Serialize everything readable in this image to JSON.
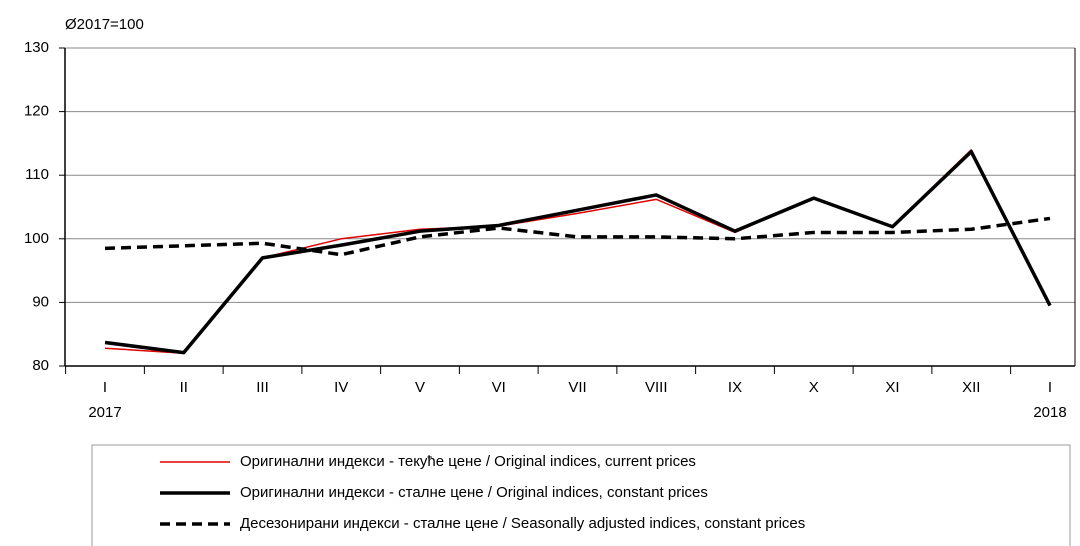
{
  "chart_data": {
    "type": "line",
    "unit_label": "Ø2017=100",
    "categories": [
      "I",
      "II",
      "III",
      "IV",
      "V",
      "VI",
      "VII",
      "VIII",
      "IX",
      "X",
      "XI",
      "XII",
      "I"
    ],
    "category_years": [
      "2017",
      null,
      null,
      null,
      null,
      null,
      null,
      null,
      null,
      null,
      null,
      null,
      "2018"
    ],
    "series": [
      {
        "name": "Оригинални индекси - текуће цене / Original indices, current prices",
        "color": "#e00000",
        "style": "solid",
        "values": [
          82.8,
          82.0,
          97.0,
          100.0,
          101.5,
          102.0,
          104.0,
          106.2,
          101.0,
          106.4,
          102.0,
          114.0,
          89.5
        ]
      },
      {
        "name": "Оригинални индекси - сталне цене / Original indices, constant prices",
        "color": "#000000",
        "style": "solid",
        "values": [
          83.7,
          82.1,
          97.0,
          99.0,
          101.2,
          102.1,
          104.5,
          106.9,
          101.2,
          106.4,
          101.9,
          113.7,
          89.5
        ]
      },
      {
        "name": "Десезонирани индекси - сталне цене / Seasonally adjusted indices, constant prices",
        "color": "#000000",
        "style": "dashed",
        "values": [
          98.5,
          98.9,
          99.3,
          97.5,
          100.3,
          101.7,
          100.3,
          100.3,
          100.0,
          101.0,
          101.0,
          101.5,
          103.2
        ]
      }
    ],
    "ylim": [
      80,
      130
    ],
    "yticks": [
      80,
      90,
      100,
      110,
      120,
      130
    ],
    "grid": true,
    "legend": "bottom"
  }
}
